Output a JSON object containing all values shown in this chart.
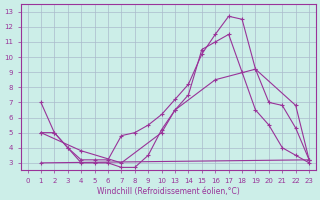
{
  "xlabel": "Windchill (Refroidissement éolien,°C)",
  "bg_color": "#cceee8",
  "grid_color": "#aabbcc",
  "line_color": "#993399",
  "x_labels": [
    "0",
    "1",
    "2",
    "3",
    "4",
    "5",
    "6",
    "7",
    "8",
    "9",
    "10",
    "13",
    "14",
    "15",
    "16",
    "17",
    "18",
    "19",
    "20",
    "21",
    "22",
    "23"
  ],
  "lines": [
    {
      "xi": [
        1,
        2,
        3,
        4,
        5,
        6,
        7,
        8,
        9,
        10,
        11,
        12,
        13,
        14,
        15,
        16,
        17,
        18,
        19,
        20,
        21
      ],
      "y": [
        7.0,
        5.0,
        4.0,
        3.0,
        3.0,
        3.0,
        2.7,
        2.7,
        3.5,
        5.2,
        6.5,
        7.5,
        10.5,
        11.0,
        11.5,
        9.0,
        6.5,
        5.5,
        4.0,
        3.5,
        3.0
      ]
    },
    {
      "xi": [
        1,
        2,
        3,
        4,
        5,
        6,
        7,
        8,
        9,
        10,
        11,
        12,
        13,
        14,
        15,
        16,
        17,
        18,
        19,
        20,
        21
      ],
      "y": [
        5.0,
        5.0,
        4.0,
        3.2,
        3.2,
        3.2,
        4.8,
        5.0,
        5.5,
        6.2,
        7.2,
        8.2,
        10.2,
        11.5,
        12.7,
        12.5,
        9.2,
        7.0,
        6.8,
        5.3,
        3.2
      ]
    },
    {
      "xi": [
        1,
        4,
        7,
        10,
        11,
        14,
        17,
        20,
        21
      ],
      "y": [
        5.0,
        3.8,
        3.0,
        5.0,
        6.5,
        8.5,
        9.2,
        6.8,
        3.2
      ]
    },
    {
      "xi": [
        1,
        21
      ],
      "y": [
        3.0,
        3.2
      ]
    }
  ],
  "ylim": [
    2.5,
    13.5
  ],
  "yticks": [
    3,
    4,
    5,
    6,
    7,
    8,
    9,
    10,
    11,
    12,
    13
  ]
}
